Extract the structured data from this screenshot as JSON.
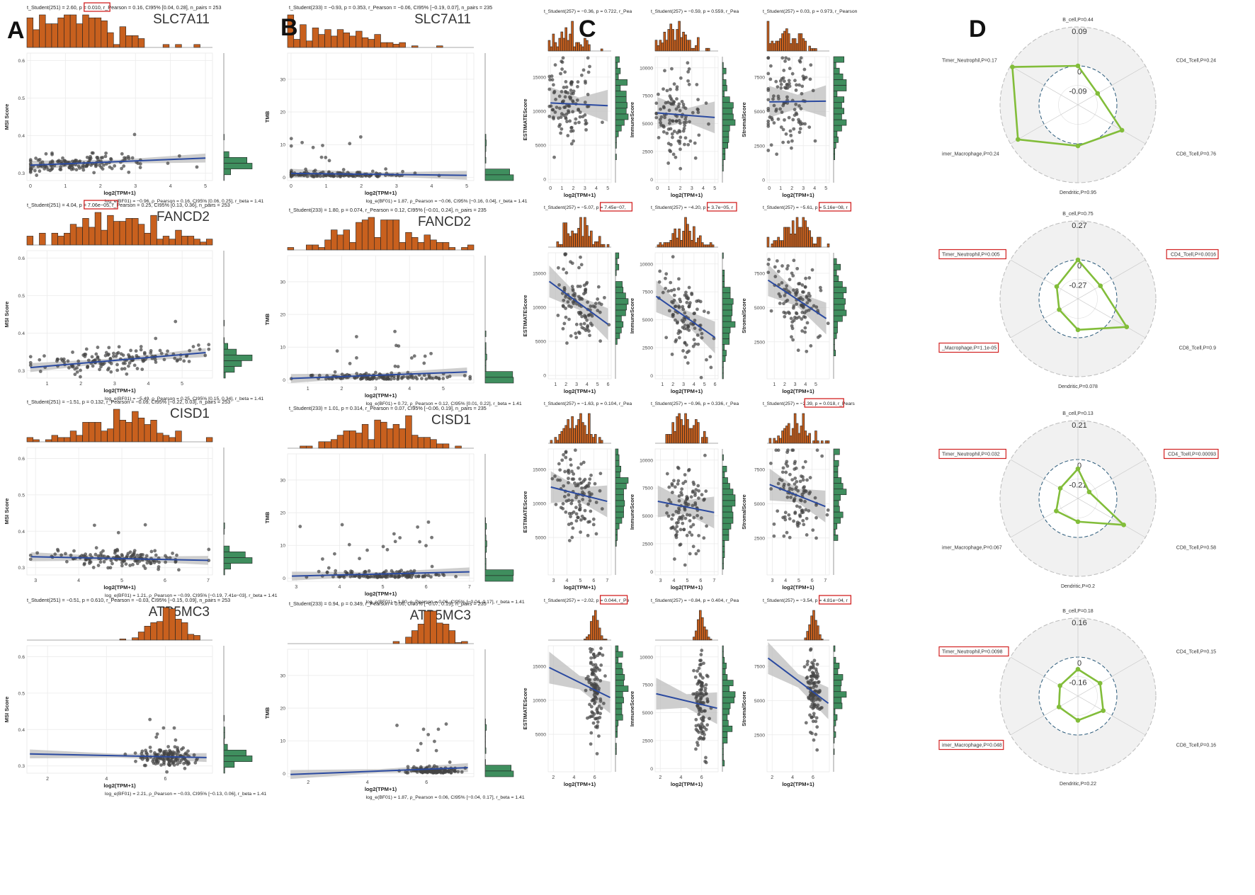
{
  "figure": {
    "panel_labels": [
      "A",
      "B",
      "C",
      "D"
    ],
    "colors": {
      "hist_fill": "#c8601e",
      "hist_stroke": "#222222",
      "marg_fill": "#3f8e5e",
      "marg_stroke": "#222222",
      "point": "#444444",
      "line": "#2b4aa0",
      "band": "#bdbdbd",
      "radar_line": "#82bd3a",
      "radar_ring": "#2a5a7a",
      "radar_bg": "#f1f1f1",
      "highlight": "#d22222"
    }
  },
  "chart_data": [
    {
      "type": "scatter",
      "panel": "A",
      "gene": "SLC7A11",
      "subtitle": "t_Student(251) = 2.60, p = 0.010, r_Pearson = 0.16, CI95% [0.04, 0.28], n_pairs = 253",
      "highlight": "p = 0.010",
      "footer": "log_e(BF01) = −0.96, ρ_Pearson = 0.16, CI95% [0.06, 0.25], r_beta = 1.41",
      "xlabel": "log2(TPM+1)",
      "ylabel": "MSI Score",
      "xlim": [
        -0.1,
        5.2
      ],
      "ylim": [
        0.28,
        0.62
      ],
      "xticks": [
        0,
        1,
        2,
        3,
        4,
        5
      ],
      "yticks": [
        0.3,
        0.4,
        0.5,
        0.6
      ],
      "fit": {
        "x0": 0,
        "y0": 0.321,
        "x1": 5,
        "y1": 0.34
      },
      "x_center": 1.2,
      "x_spread": 1.0,
      "y_center": 0.325,
      "y_spread": 0.012,
      "n": 150,
      "seed": 11
    },
    {
      "type": "scatter",
      "panel": "A",
      "gene": "FANCD2",
      "subtitle": "t_Student(251) = 4.04, p = 7.06e−05, r_Pearson = 0.25, CI95% [0.13, 0.36], n_pairs = 253",
      "highlight": "p = 7.06e−05",
      "footer": "log_e(BF01) = −5.49, ρ_Pearson = 0.25, CI95% [0.15, 0.34], r_beta = 1.41",
      "xlabel": "log2(TPM+1)",
      "ylabel": "MSI Score",
      "xlim": [
        0.4,
        5.9
      ],
      "ylim": [
        0.28,
        0.62
      ],
      "xticks": [
        1,
        2,
        3,
        4,
        5
      ],
      "yticks": [
        0.3,
        0.4,
        0.5,
        0.6
      ],
      "fit": {
        "x0": 0.5,
        "y0": 0.308,
        "x1": 5.7,
        "y1": 0.348
      },
      "x_center": 3.0,
      "x_spread": 1.1,
      "y_center": 0.326,
      "y_spread": 0.016,
      "n": 150,
      "seed": 12
    },
    {
      "type": "scatter",
      "panel": "A",
      "gene": "CISD1",
      "subtitle": "t_Student(251) = −1.51, p = 0.132, r_Pearson = −0.09, CI95% [−0.22, 0.03], n_pairs = 253",
      "highlight": "",
      "footer": "log_e(BF01) = 1.21, ρ_Pearson = −0.09, CI95% [−0.19, 7.41e−03], r_beta = 1.41",
      "xlabel": "log2(TPM+1)",
      "ylabel": "MSI Score",
      "xlim": [
        2.8,
        7.1
      ],
      "ylim": [
        0.28,
        0.63
      ],
      "xticks": [
        3,
        4,
        5,
        6,
        7
      ],
      "yticks": [
        0.3,
        0.4,
        0.5,
        0.6
      ],
      "fit": {
        "x0": 2.9,
        "y0": 0.33,
        "x1": 7.0,
        "y1": 0.32
      },
      "x_center": 4.9,
      "x_spread": 0.8,
      "y_center": 0.325,
      "y_spread": 0.013,
      "n": 150,
      "seed": 13
    },
    {
      "type": "scatter",
      "panel": "A",
      "gene": "ATP5MC3",
      "subtitle": "t_Student(251) = −0.51, p = 0.610, r_Pearson = −0.03, CI95% [−0.15, 0.09], n_pairs = 253",
      "highlight": "",
      "footer": "log_e(BF01) = 2.21, ρ_Pearson = −0.03, CI95% [−0.13, 0.06], r_beta = 1.41",
      "xlabel": "log2(TPM+1)",
      "ylabel": "MSI Score",
      "xlim": [
        1.3,
        7.6
      ],
      "ylim": [
        0.28,
        0.63
      ],
      "xticks": [
        2,
        4,
        6
      ],
      "yticks": [
        0.3,
        0.4,
        0.5,
        0.6
      ],
      "fit": {
        "x0": 1.4,
        "y0": 0.333,
        "x1": 7.4,
        "y1": 0.323
      },
      "x_center": 6.1,
      "x_spread": 0.45,
      "y_center": 0.325,
      "y_spread": 0.013,
      "n": 150,
      "seed": 14
    },
    {
      "type": "scatter",
      "panel": "B",
      "gene": "SLC7A11",
      "subtitle": "t_Student(233) = −0.93, p = 0.353, r_Pearson = −0.06, CI95% [−0.19, 0.07], n_pairs = 235",
      "highlight": "",
      "footer": "log_e(BF01) = 1.87, ρ_Pearson = −0.06, CI95% [−0.16, 0.04], r_beta = 1.41",
      "xlabel": "log2(TPM+1)",
      "ylabel": "TMB",
      "xlim": [
        -0.1,
        5.2
      ],
      "ylim": [
        -1,
        38
      ],
      "xticks": [
        0,
        1,
        2,
        3,
        4,
        5
      ],
      "yticks": [
        0,
        10,
        20,
        30
      ],
      "fit": {
        "x0": 0,
        "y0": 1.2,
        "x1": 5,
        "y1": 0.6
      },
      "x_center": 1.2,
      "x_spread": 1.0,
      "y_center": 1.0,
      "y_spread": 0.8,
      "n": 150,
      "seed": 21
    },
    {
      "type": "scatter",
      "panel": "B",
      "gene": "FANCD2",
      "subtitle": "t_Student(233) = 1.80, p = 0.074, r_Pearson = 0.12, CI95% [−0.01, 0.24], n_pairs = 235",
      "highlight": "",
      "footer": "log_e(BF01) = 0.72, ρ_Pearson = 0.12, CI95% [0.01, 0.22], r_beta = 1.41",
      "xlabel": "log2(TPM+1)",
      "ylabel": "TMB",
      "xlim": [
        0.4,
        5.9
      ],
      "ylim": [
        -1,
        38
      ],
      "xticks": [
        1,
        2,
        3,
        4,
        5
      ],
      "yticks": [
        0,
        10,
        20,
        30
      ],
      "fit": {
        "x0": 0.5,
        "y0": 0.4,
        "x1": 5.7,
        "y1": 2.4
      },
      "x_center": 3.0,
      "x_spread": 1.1,
      "y_center": 1.0,
      "y_spread": 0.8,
      "n": 150,
      "seed": 22
    },
    {
      "type": "scatter",
      "panel": "B",
      "gene": "CISD1",
      "subtitle": "t_Student(233) = 1.01, p = 0.314, r_Pearson = 0.07, CI95% [−0.06, 0.19], n_pairs = 235",
      "highlight": "",
      "footer": "log_e(BF01) = 1.80, ρ_Pearson = 0.06, CI95% [−0.04, 0.17], r_beta = 1.41",
      "xlabel": "log2(TPM+1)",
      "ylabel": "TMB",
      "xlim": [
        2.8,
        7.1
      ],
      "ylim": [
        -1,
        38
      ],
      "xticks": [
        3,
        4,
        5,
        6,
        7
      ],
      "yticks": [
        0,
        10,
        20,
        30
      ],
      "fit": {
        "x0": 2.9,
        "y0": 0.6,
        "x1": 7.0,
        "y1": 1.9
      },
      "x_center": 4.9,
      "x_spread": 0.8,
      "y_center": 1.0,
      "y_spread": 0.8,
      "n": 150,
      "seed": 23
    },
    {
      "type": "scatter",
      "panel": "B",
      "gene": "ATP5MC3",
      "subtitle": "t_Student(233) = 0.94, p = 0.349, r_Pearson = 0.06, CI95% [−0.07, 0.19], n_pairs = 235",
      "highlight": "",
      "footer": "log_e(BF01) = 1.87, ρ_Pearson = 0.06, CI95% [−0.04, 0.17], r_beta = 1.41",
      "xlabel": "log2(TPM+1)",
      "ylabel": "TMB",
      "xlim": [
        1.3,
        7.6
      ],
      "ylim": [
        -1,
        38
      ],
      "xticks": [
        2,
        4,
        6
      ],
      "yticks": [
        0,
        10,
        20,
        30
      ],
      "fit": {
        "x0": 1.4,
        "y0": -0.3,
        "x1": 7.4,
        "y1": 1.8
      },
      "x_center": 6.1,
      "x_spread": 0.45,
      "y_center": 1.0,
      "y_spread": 0.8,
      "n": 150,
      "seed": 24
    },
    {
      "type": "scatter",
      "panel": "C",
      "gene": "SLC7A11",
      "subtitle": "t_Student(257) = −0.36, p = 0.722, r_Pea",
      "highlight": "",
      "xlabel": "log2(TPM+1)",
      "ylabel": "ESTIMATEScore",
      "xlim": [
        -0.2,
        5.3
      ],
      "ylim": [
        -500,
        18000
      ],
      "xticks": [
        0,
        1,
        2,
        3,
        4,
        5
      ],
      "yticks": [
        0,
        5000,
        10000,
        15000
      ],
      "fit": {
        "x0": 0,
        "y0": 11200,
        "x1": 5,
        "y1": 10800
      },
      "x_center": 1.5,
      "x_spread": 1.1,
      "y_center": 10500,
      "y_spread": 3200,
      "n": 110,
      "seed": 31
    },
    {
      "type": "scatter",
      "panel": "C",
      "gene": "SLC7A11",
      "subtitle": "t_Student(257) = −0.59, p = 0.559, r_Pea",
      "highlight": "",
      "xlabel": "log2(TPM+1)",
      "ylabel": "ImmuneScore",
      "xlim": [
        -0.2,
        5.3
      ],
      "ylim": [
        -300,
        11000
      ],
      "xticks": [
        0,
        1,
        2,
        3,
        4,
        5
      ],
      "yticks": [
        0,
        2500,
        5000,
        7500,
        10000
      ],
      "fit": {
        "x0": 0,
        "y0": 5950,
        "x1": 5,
        "y1": 5550
      },
      "x_center": 1.5,
      "x_spread": 1.1,
      "y_center": 5800,
      "y_spread": 2000,
      "n": 110,
      "seed": 32
    },
    {
      "type": "scatter",
      "panel": "C",
      "gene": "SLC7A11",
      "subtitle": "t_Student(257) = 0.03, p = 0.973, r_Pearson",
      "highlight": "",
      "xlabel": "log2(TPM+1)",
      "ylabel": "StromalScore",
      "xlim": [
        -0.2,
        5.3
      ],
      "ylim": [
        -200,
        9000
      ],
      "xticks": [
        0,
        1,
        2,
        3,
        4,
        5
      ],
      "yticks": [
        0,
        2500,
        5000,
        7500
      ],
      "fit": {
        "x0": 0,
        "y0": 5700,
        "x1": 5,
        "y1": 5750
      },
      "x_center": 1.5,
      "x_spread": 1.1,
      "y_center": 5500,
      "y_spread": 1700,
      "n": 110,
      "seed": 33
    },
    {
      "type": "scatter",
      "panel": "C",
      "gene": "FANCD2",
      "subtitle": "t_Student(257) = −5.07, p = 7.45e−07,",
      "highlight": "p = 7.45e−07",
      "xlabel": "log2(TPM+1)",
      "ylabel": "ESTIMATEScore",
      "xlim": [
        0.3,
        6.3
      ],
      "ylim": [
        -500,
        18000
      ],
      "xticks": [
        1,
        2,
        3,
        4,
        5,
        6
      ],
      "yticks": [
        0,
        5000,
        10000,
        15000
      ],
      "fit": {
        "x0": 0.4,
        "y0": 13800,
        "x1": 6,
        "y1": 7500
      },
      "x_center": 3.2,
      "x_spread": 1.2,
      "y_center": 10800,
      "y_spread": 3000,
      "n": 110,
      "seed": 34
    },
    {
      "type": "scatter",
      "panel": "C",
      "gene": "FANCD2",
      "subtitle": "t_Student(257) = −4.20, p = 3.7e−05, r",
      "highlight": "p = 3.7e−05",
      "xlabel": "log2(TPM+1)",
      "ylabel": "ImmuneScore",
      "xlim": [
        0.3,
        6.3
      ],
      "ylim": [
        -300,
        11000
      ],
      "xticks": [
        1,
        2,
        3,
        4,
        5,
        6
      ],
      "yticks": [
        0,
        2500,
        5000,
        7500,
        10000
      ],
      "fit": {
        "x0": 0.4,
        "y0": 7100,
        "x1": 6,
        "y1": 3400
      },
      "x_center": 3.2,
      "x_spread": 1.2,
      "y_center": 5600,
      "y_spread": 1900,
      "n": 110,
      "seed": 35
    },
    {
      "type": "scatter",
      "panel": "C",
      "gene": "FANCD2",
      "subtitle": "t_Student(257) = −5.61, p = 5.16e−08, r",
      "highlight": "p = 5.16e−08",
      "xlabel": "log2(TPM+1)",
      "ylabel": "StromalScore",
      "xlim": [
        0.3,
        6.3
      ],
      "ylim": [
        -200,
        9000
      ],
      "xticks": [
        1,
        2,
        3,
        4,
        5
      ],
      "yticks": [
        2500,
        5000,
        7500
      ],
      "fit": {
        "x0": 0.4,
        "y0": 7000,
        "x1": 6,
        "y1": 4200
      },
      "x_center": 3.2,
      "x_spread": 1.2,
      "y_center": 5600,
      "y_spread": 1500,
      "n": 110,
      "seed": 36
    },
    {
      "type": "scatter",
      "panel": "C",
      "gene": "CISD1",
      "subtitle": "t_Student(257) = −1.63, p = 0.104, r_Pea",
      "highlight": "",
      "xlabel": "log2(TPM+1)",
      "ylabel": "ESTIMATEScore",
      "xlim": [
        2.6,
        7.3
      ],
      "ylim": [
        -500,
        18000
      ],
      "xticks": [
        3,
        4,
        5,
        6,
        7
      ],
      "yticks": [
        5000,
        10000,
        15000
      ],
      "fit": {
        "x0": 2.8,
        "y0": 12400,
        "x1": 7,
        "y1": 10300
      },
      "x_center": 4.8,
      "x_spread": 0.8,
      "y_center": 10800,
      "y_spread": 3000,
      "n": 110,
      "seed": 37
    },
    {
      "type": "scatter",
      "panel": "C",
      "gene": "CISD1",
      "subtitle": "t_Student(257) = −0.96, p = 0.336, r_Pea",
      "highlight": "",
      "xlabel": "log2(TPM+1)",
      "ylabel": "ImmuneScore",
      "xlim": [
        2.6,
        7.3
      ],
      "ylim": [
        -300,
        11000
      ],
      "xticks": [
        3,
        4,
        5,
        6,
        7
      ],
      "yticks": [
        0,
        2500,
        5000,
        7500,
        10000
      ],
      "fit": {
        "x0": 2.8,
        "y0": 6300,
        "x1": 7,
        "y1": 5300
      },
      "x_center": 4.8,
      "x_spread": 0.8,
      "y_center": 5700,
      "y_spread": 1900,
      "n": 110,
      "seed": 38
    },
    {
      "type": "scatter",
      "panel": "C",
      "gene": "CISD1",
      "subtitle": "t_Student(257) = −2.39, p = 0.018, r_Pears",
      "highlight": "2.39, p = 0.018",
      "xlabel": "log2(TPM+1)",
      "ylabel": "StromalScore",
      "xlim": [
        2.6,
        7.3
      ],
      "ylim": [
        -200,
        9000
      ],
      "xticks": [
        3,
        4,
        5,
        6,
        7
      ],
      "yticks": [
        2500,
        5000,
        7500
      ],
      "fit": {
        "x0": 2.8,
        "y0": 6400,
        "x1": 7,
        "y1": 4800
      },
      "x_center": 4.8,
      "x_spread": 0.8,
      "y_center": 5600,
      "y_spread": 1500,
      "n": 110,
      "seed": 39
    },
    {
      "type": "scatter",
      "panel": "C",
      "gene": "ATP5MC3",
      "subtitle": "t_Student(257) = −2.02, p = 0.044, r_Pe",
      "highlight": "p = 0.044,",
      "xlabel": "log2(TPM+1)",
      "ylabel": "ESTIMATEScore",
      "xlim": [
        1.5,
        7.6
      ],
      "ylim": [
        -500,
        18000
      ],
      "xticks": [
        2,
        4,
        6
      ],
      "yticks": [
        5000,
        10000,
        15000
      ],
      "fit": {
        "x0": 1.6,
        "y0": 14800,
        "x1": 7.5,
        "y1": 10400
      },
      "x_center": 6.0,
      "x_spread": 0.35,
      "y_center": 10800,
      "y_spread": 3100,
      "n": 110,
      "seed": 40
    },
    {
      "type": "scatter",
      "panel": "C",
      "gene": "ATP5MC3",
      "subtitle": "t_Student(257) = −0.84, p = 0.404, r_Pea",
      "highlight": "",
      "xlabel": "log2(TPM+1)",
      "ylabel": "ImmuneScore",
      "xlim": [
        1.5,
        7.6
      ],
      "ylim": [
        -300,
        11000
      ],
      "xticks": [
        2,
        4,
        6
      ],
      "yticks": [
        0,
        2500,
        5000,
        7500,
        10000
      ],
      "fit": {
        "x0": 1.6,
        "y0": 6700,
        "x1": 7.5,
        "y1": 5400
      },
      "x_center": 6.0,
      "x_spread": 0.35,
      "y_center": 5600,
      "y_spread": 2000,
      "n": 110,
      "seed": 41
    },
    {
      "type": "scatter",
      "panel": "C",
      "gene": "ATP5MC3",
      "subtitle": "t_Student(257) = −3.54, p = 4.81e−04, r",
      "highlight": "p = 4.81e−04",
      "xlabel": "log2(TPM+1)",
      "ylabel": "StromalScore",
      "xlim": [
        1.5,
        7.6
      ],
      "ylim": [
        -200,
        9000
      ],
      "xticks": [
        2,
        4,
        6
      ],
      "yticks": [
        2500,
        5000,
        7500
      ],
      "fit": {
        "x0": 1.6,
        "y0": 8100,
        "x1": 7.5,
        "y1": 4800
      },
      "x_center": 6.0,
      "x_spread": 0.35,
      "y_center": 5600,
      "y_spread": 1500,
      "n": 110,
      "seed": 42
    },
    {
      "type": "radar",
      "panel": "D",
      "axes": [
        "B_cell",
        "CD4_Tcell",
        "CD8_Tcell",
        "Dendritic",
        "Macrophage",
        "Neutrophil"
      ],
      "axis_labels": [
        "B_cell,P=0.44",
        "CD4_Tcell,P=0.24",
        "CD8_Tcell,P=0.76",
        "Dendritic,P=0.95",
        "imer_Macrophage,P=0.24",
        "Timer_Neutrophil,P=0.17"
      ],
      "highlight": [
        false,
        false,
        false,
        false,
        false,
        false
      ],
      "rings": [
        "0.09",
        "0",
        "-0.09"
      ],
      "values": [
        0.0,
        -0.075,
        0.055,
        0.01,
        0.14,
        0.17
      ],
      "rmin": -0.18,
      "rmax": 0.18
    },
    {
      "type": "radar",
      "panel": "D",
      "axes": [
        "B_cell",
        "CD4_Tcell",
        "CD8_Tcell",
        "Dendritic",
        "Macrophage",
        "Neutrophil"
      ],
      "axis_labels": [
        "B_cell,P=0.75",
        "CD4_Tcell,P=0.0016",
        "CD8_Tcell,P=0.9",
        "Dendritic,P=0.078",
        "_Macrophage,P=1.1e-05",
        "Timer_Neutrophil,P=0.005"
      ],
      "highlight": [
        false,
        true,
        false,
        false,
        true,
        true
      ],
      "rings": [
        "0.27",
        "0",
        "-0.27"
      ],
      "values": [
        0.0,
        -0.18,
        0.24,
        -0.11,
        -0.24,
        -0.2
      ],
      "rmin": -0.54,
      "rmax": 0.54
    },
    {
      "type": "radar",
      "panel": "D",
      "axes": [
        "B_cell",
        "CD4_Tcell",
        "CD8_Tcell",
        "Dendritic",
        "Macrophage",
        "Neutrophil"
      ],
      "axis_labels": [
        "B_cell,P=0.13",
        "CD4_Tcell,P=0.00093",
        "CD8_Tcell,P=0.58",
        "Dendritic,P=0.2",
        "imer_Macrophage,P=0.067",
        "Timer_Neutrophil,P=0.032"
      ],
      "highlight": [
        false,
        true,
        false,
        false,
        false,
        true
      ],
      "rings": [
        "0.21",
        "0",
        "-0.21"
      ],
      "values": [
        -0.1,
        -0.28,
        0.15,
        -0.17,
        -0.15,
        -0.2
      ],
      "rmin": -0.42,
      "rmax": 0.42
    },
    {
      "type": "radar",
      "panel": "D",
      "axes": [
        "B_cell",
        "CD4_Tcell",
        "CD8_Tcell",
        "Dendritic",
        "Macrophage",
        "Neutrophil"
      ],
      "axis_labels": [
        "B_cell,P=0.18",
        "CD4_Tcell,P=0.15",
        "CD8_Tcell,P=0.16",
        "Dendritic,P=0.22",
        "imer_Macrophage,P=0.048",
        "Timer_Neutrophil,P=0.0098"
      ],
      "highlight": [
        false,
        false,
        false,
        false,
        true,
        true
      ],
      "rings": [
        "0.16",
        "0",
        "-0.16"
      ],
      "values": [
        -0.1,
        -0.11,
        -0.08,
        -0.12,
        -0.14,
        -0.15
      ],
      "rmin": -0.32,
      "rmax": 0.32
    }
  ]
}
